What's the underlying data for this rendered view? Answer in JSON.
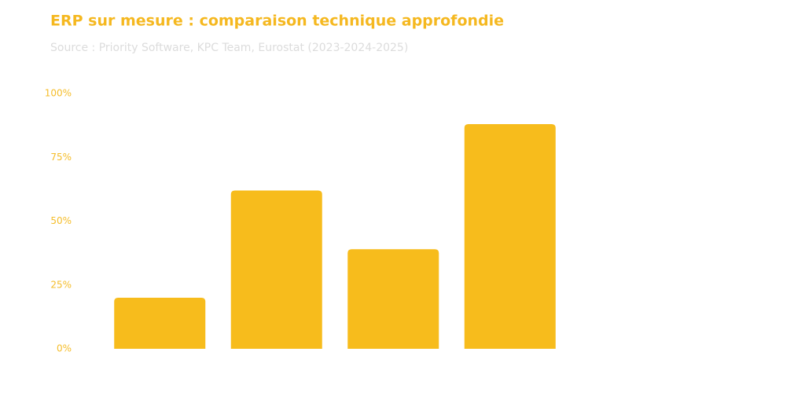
{
  "chart_data": {
    "type": "bar",
    "title": "ERP sur mesure : comparaison technique approfondie",
    "subtitle": "Source : Priority Software, KPC Team, Eurostat (2023-2024-2025)",
    "categories": [
      null,
      null,
      null,
      null
    ],
    "values": [
      20,
      62,
      39,
      88
    ],
    "color": "#f7bc1c",
    "ylim": [
      0,
      100
    ],
    "yticks": [
      {
        "value": 0,
        "label": "0%"
      },
      {
        "value": 25,
        "label": "25%"
      },
      {
        "value": 50,
        "label": "50%"
      },
      {
        "value": 75,
        "label": "75%"
      },
      {
        "value": 100,
        "label": "100%"
      }
    ],
    "grid": false
  }
}
